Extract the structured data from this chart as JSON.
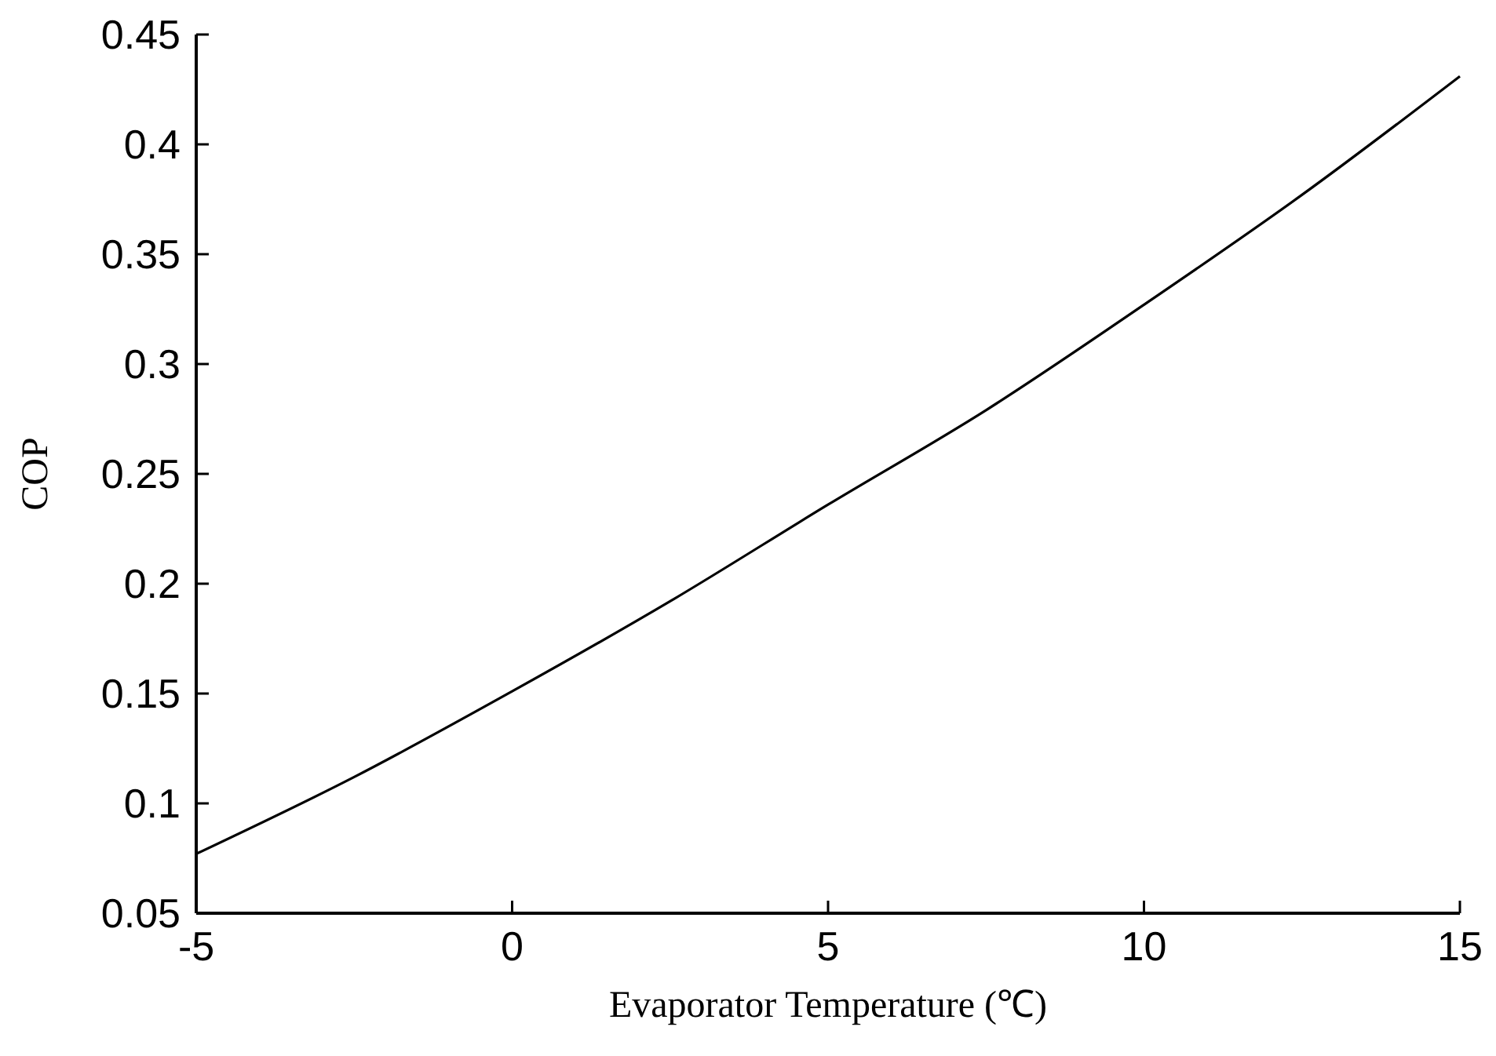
{
  "chart_data": {
    "type": "line",
    "xlabel": "Evaporator Temperature (℃)",
    "ylabel": "COP",
    "x": [
      -5,
      -2.5,
      0,
      2.5,
      5,
      7.5,
      10,
      12.5,
      15
    ],
    "series": [
      {
        "color": "#000000",
        "values": [
          0.077,
          0.112,
          0.151,
          0.192,
          0.236,
          0.279,
          0.327,
          0.377,
          0.431
        ]
      }
    ],
    "xlim": [
      -5,
      15
    ],
    "xticks": [
      -5,
      0,
      5,
      10,
      15
    ],
    "ylim": [
      0.05,
      0.45
    ],
    "yticks": [
      0.05,
      0.1,
      0.15,
      0.2,
      0.25,
      0.3,
      0.35,
      0.4,
      0.45
    ],
    "grid": false,
    "marker": "none",
    "line_style": "solid"
  }
}
